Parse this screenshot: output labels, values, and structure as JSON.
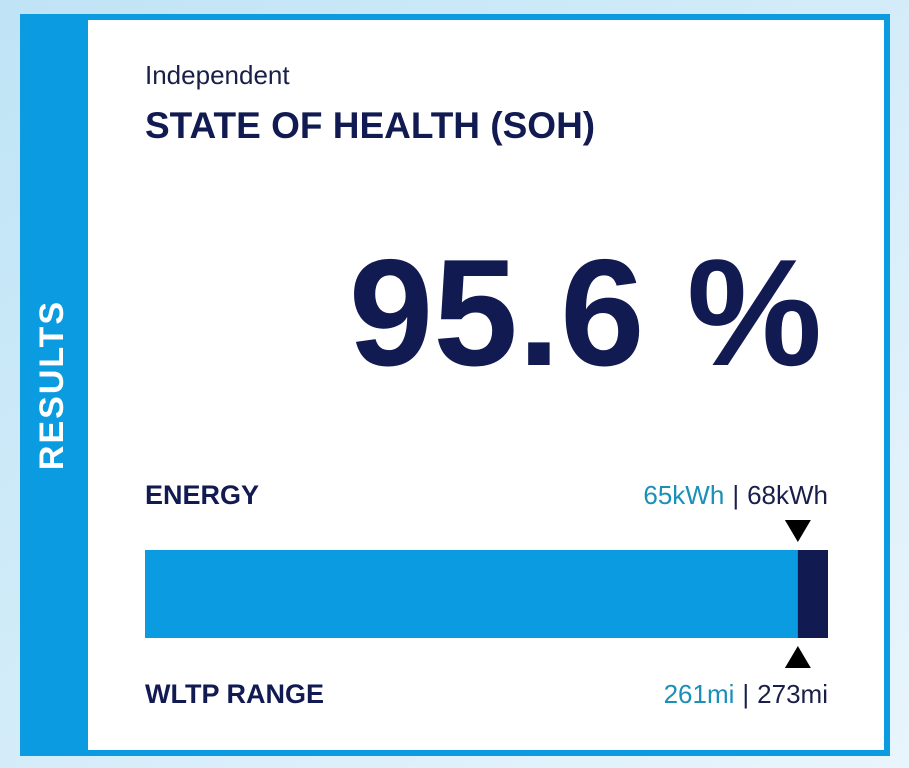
{
  "side_label": "RESULTS",
  "header": {
    "kicker": "Independent",
    "title": "STATE OF HEALTH (SOH)"
  },
  "soh": "95.6 %",
  "energy": {
    "label": "ENERGY",
    "current": {
      "value": 65,
      "label": "65kWh"
    },
    "separator": "|",
    "total": {
      "value": 68,
      "label": "68kWh"
    }
  },
  "range": {
    "label": "WLTP RANGE",
    "current": {
      "value": 261,
      "label": "261mi"
    },
    "separator": "|",
    "total": {
      "value": 273,
      "label": "273mi"
    }
  }
}
